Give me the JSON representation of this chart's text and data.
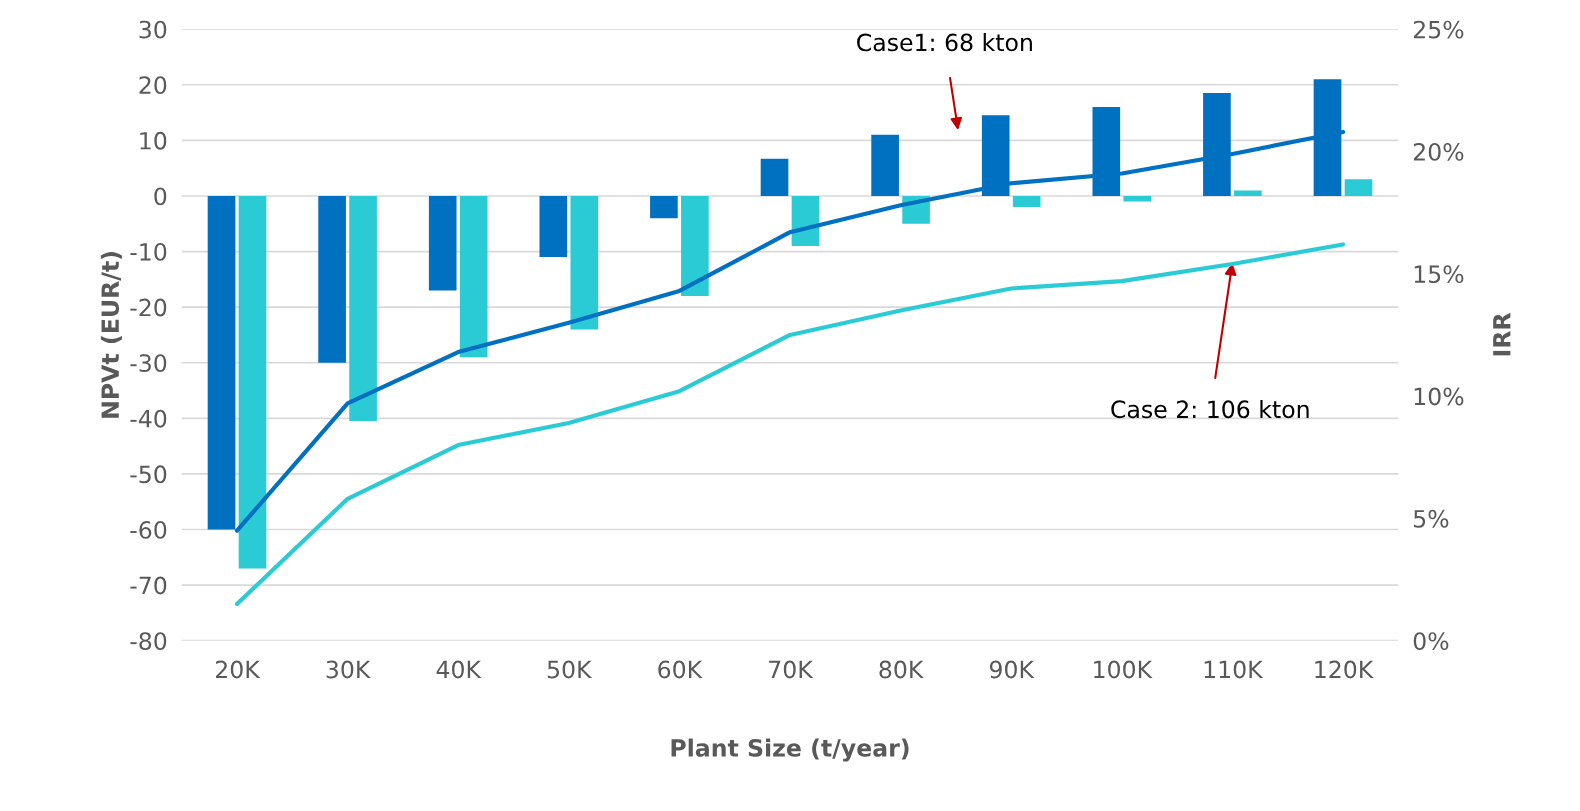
{
  "chart_data": {
    "type": "bar",
    "xlabel": "Plant Size (t/year)",
    "ylabel": "NPVt (EUR/t)",
    "y2label": "IRR",
    "categories": [
      "20K",
      "30K",
      "40K",
      "50K",
      "60K",
      "70K",
      "80K",
      "90K",
      "100K",
      "110K",
      "120K"
    ],
    "series": [
      {
        "color": "#0070c0",
        "values": [
          -60,
          -30,
          -17,
          -11,
          -4,
          6.7,
          11,
          14.5,
          16,
          18.5,
          21
        ]
      },
      {
        "color": "#2bcbd6",
        "values": [
          -67,
          -40.5,
          -29,
          -24,
          -18,
          -9,
          -5,
          -2,
          -1,
          1,
          3
        ]
      },
      {
        "type": "line",
        "axis": "y2",
        "color": "#0070c0",
        "values": [
          4.5,
          9.7,
          11.8,
          13.0,
          14.3,
          16.7,
          17.8,
          18.7,
          19.1,
          19.9,
          20.8
        ]
      },
      {
        "type": "line",
        "axis": "y2",
        "color": "#2bcbd6",
        "values": [
          1.5,
          5.8,
          8.0,
          8.9,
          10.2,
          12.5,
          13.5,
          14.4,
          14.7,
          15.4,
          16.2
        ]
      }
    ],
    "ylim": [
      -80,
      30
    ],
    "yticks": [
      -80,
      -70,
      -60,
      -50,
      -40,
      -30,
      -20,
      -10,
      0,
      10,
      20,
      30
    ],
    "y2lim": [
      0,
      25
    ],
    "y2ticks": [
      {
        "value": 0,
        "label": "0%"
      },
      {
        "value": 5,
        "label": "5%"
      },
      {
        "value": 10,
        "label": "10%"
      },
      {
        "value": 15,
        "label": "15%"
      },
      {
        "value": 20,
        "label": "20%"
      },
      {
        "value": 25,
        "label": "25%"
      }
    ],
    "grid": "y",
    "annotations": [
      "Case1: 68 kton",
      {
        "text": "Case 2: 106 kton",
        "x": "110K",
        "y": -12
      }
    ]
  }
}
